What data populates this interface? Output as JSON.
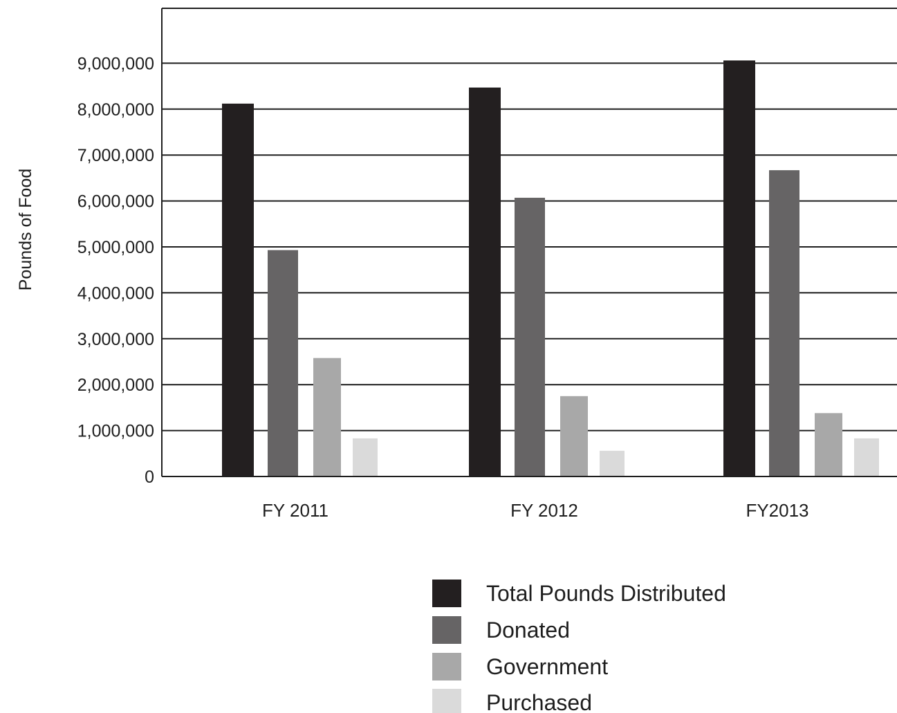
{
  "chart_data": {
    "type": "bar",
    "title": "",
    "xlabel": "",
    "ylabel": "Pounds of Food",
    "categories": [
      "FY 2011",
      "FY 2012",
      "FY2013"
    ],
    "y_ticks": [
      "0",
      "1,000,000",
      "2,000,000",
      "3,000,000",
      "4,000,000",
      "5,000,000",
      "6,000,000",
      "7,000,000",
      "8,000,000",
      "9,000,000"
    ],
    "ylim": [
      0,
      10000000
    ],
    "grid": true,
    "legend_position": "bottom",
    "series": [
      {
        "name": "Total Pounds Distributed",
        "color": "#231f20",
        "values": [
          8120000,
          8470000,
          9060000
        ]
      },
      {
        "name": "Donated",
        "color": "#666465",
        "values": [
          4930000,
          6070000,
          6670000
        ]
      },
      {
        "name": "Government",
        "color": "#a8a8a8",
        "values": [
          2580000,
          1750000,
          1380000
        ]
      },
      {
        "name": "Purchased",
        "color": "#dadada",
        "values": [
          830000,
          560000,
          830000
        ]
      }
    ]
  }
}
